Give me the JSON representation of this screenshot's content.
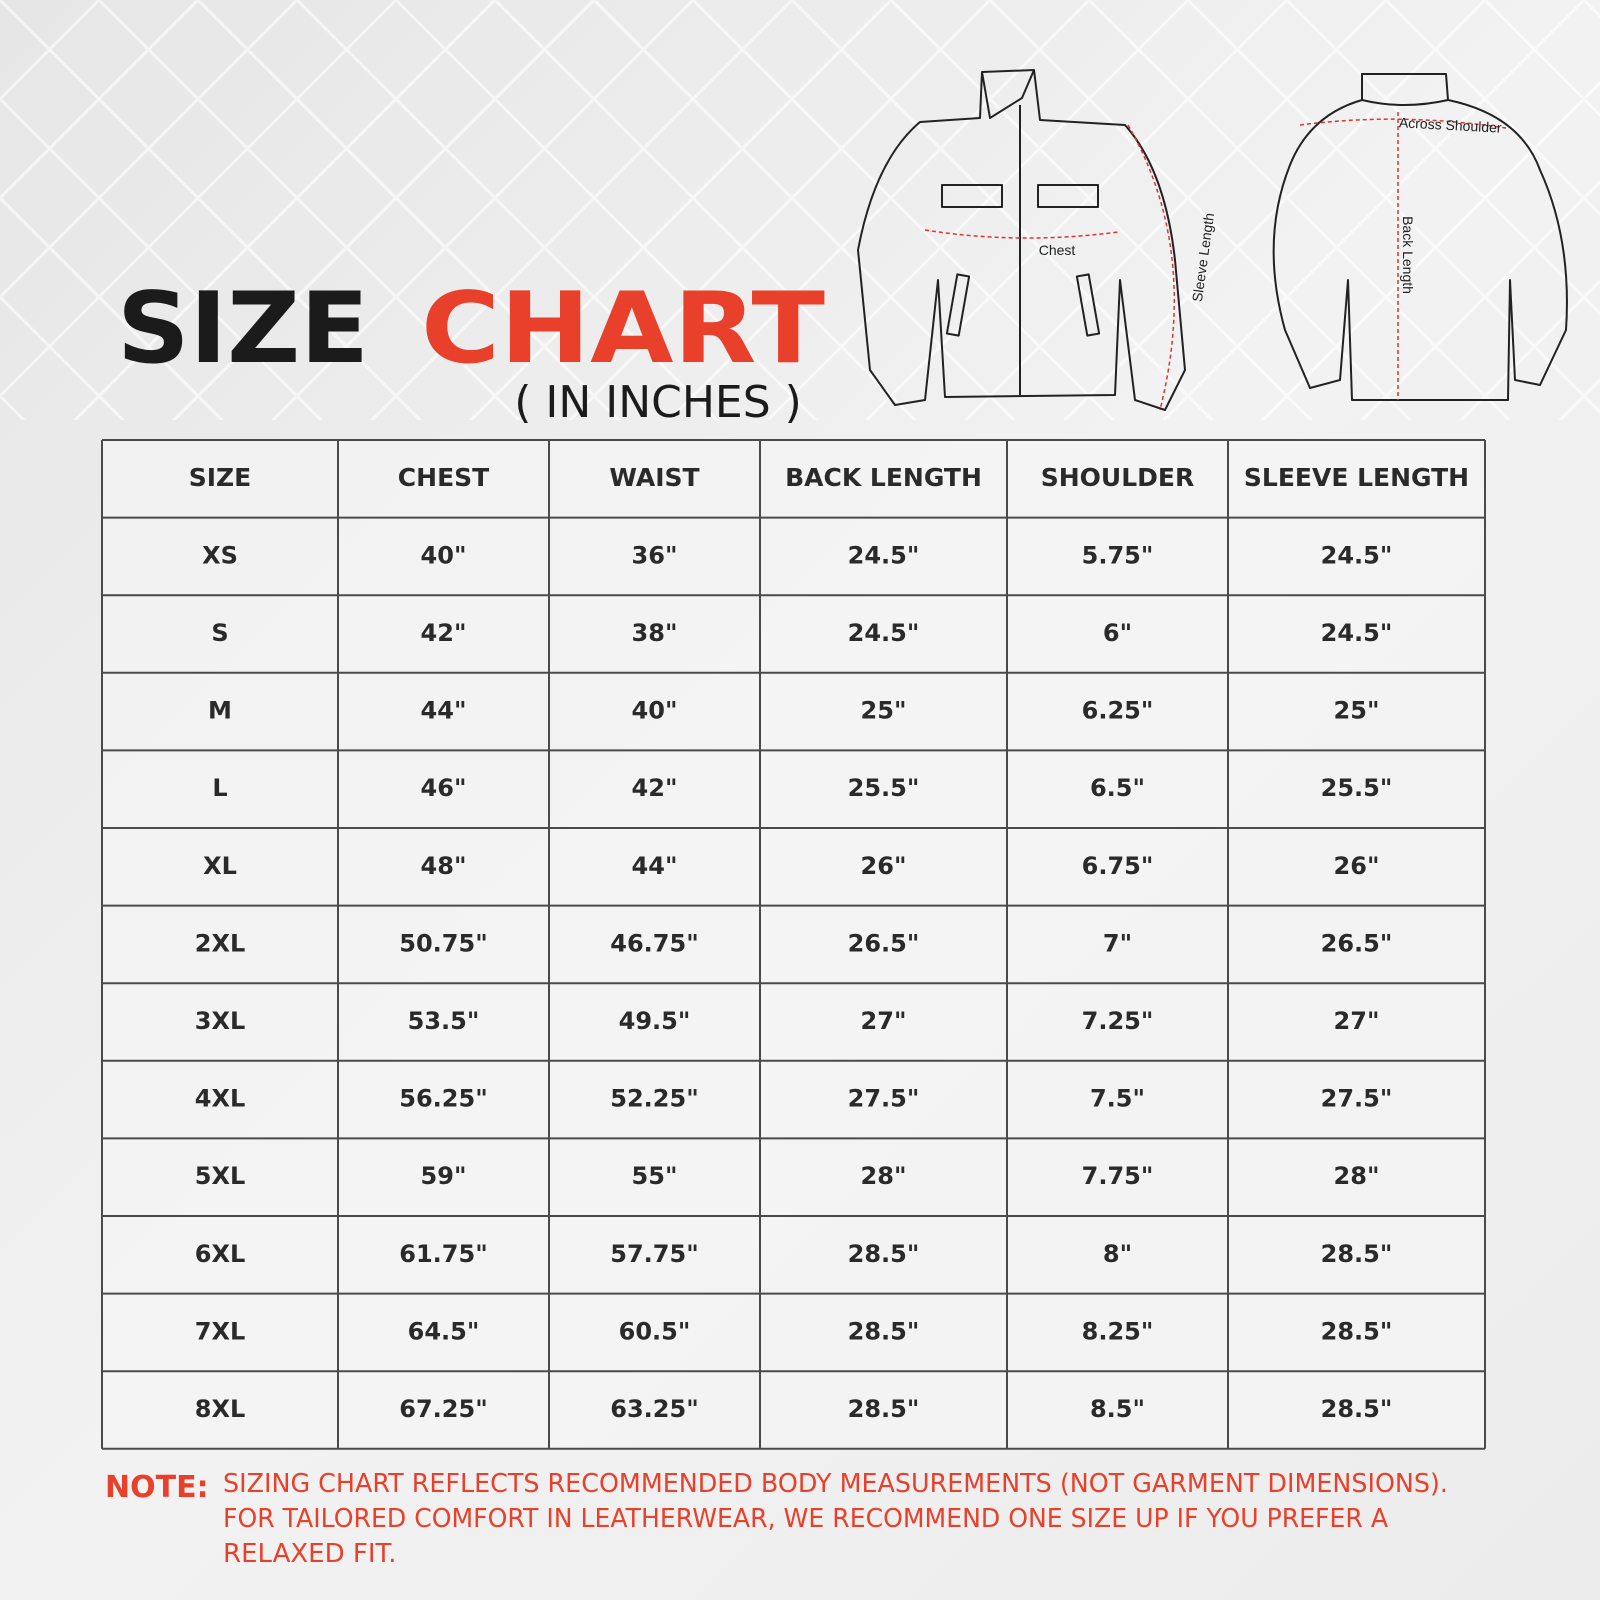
{
  "header": {
    "title_first": "SIZE",
    "title_second": "CHART",
    "subtitle": "( IN INCHES )"
  },
  "diagram": {
    "chest": "Chest",
    "sleeve_length": "Sleeve Length",
    "across_shoulder": "Across Shoulder",
    "back_length": "Back Length"
  },
  "table": {
    "columns": [
      "SIZE",
      "CHEST",
      "WAIST",
      "BACK LENGTH",
      "SHOULDER",
      "SLEEVE LENGTH"
    ],
    "rows": [
      [
        "XS",
        "40\"",
        "36\"",
        "24.5\"",
        "5.75\"",
        "24.5\""
      ],
      [
        "S",
        "42\"",
        "38\"",
        "24.5\"",
        "6\"",
        "24.5\""
      ],
      [
        "M",
        "44\"",
        "40\"",
        "25\"",
        "6.25\"",
        "25\""
      ],
      [
        "L",
        "46\"",
        "42\"",
        "25.5\"",
        "6.5\"",
        "25.5\""
      ],
      [
        "XL",
        "48\"",
        "44\"",
        "26\"",
        "6.75\"",
        "26\""
      ],
      [
        "2XL",
        "50.75\"",
        "46.75\"",
        "26.5\"",
        "7\"",
        "26.5\""
      ],
      [
        "3XL",
        "53.5\"",
        "49.5\"",
        "27\"",
        "7.25\"",
        "27\""
      ],
      [
        "4XL",
        "56.25\"",
        "52.25\"",
        "27.5\"",
        "7.5\"",
        "27.5\""
      ],
      [
        "5XL",
        "59\"",
        "55\"",
        "28\"",
        "7.75\"",
        "28\""
      ],
      [
        "6XL",
        "61.75\"",
        "57.75\"",
        "28.5\"",
        "8\"",
        "28.5\""
      ],
      [
        "7XL",
        "64.5\"",
        "60.5\"",
        "28.5\"",
        "8.25\"",
        "28.5\""
      ],
      [
        "8XL",
        "67.25\"",
        "63.25\"",
        "28.5\"",
        "8.5\"",
        "28.5\""
      ]
    ]
  },
  "note": {
    "label": "NOTE:",
    "lines": [
      "SIZING CHART REFLECTS RECOMMENDED BODY MEASUREMENTS (NOT  GARMENT DIMENSIONS).",
      "FOR TAILORED COMFORT IN LEATHERWEAR,  WE RECOMMEND ONE SIZE UP IF YOU PREFER A",
      "RELAXED FIT."
    ]
  }
}
